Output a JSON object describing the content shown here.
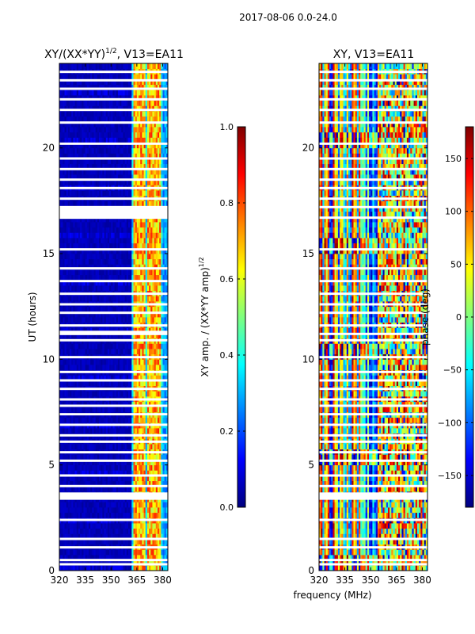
{
  "figure": {
    "suptitle": "2017-08-06 0.0-24.0",
    "shared_xlabel": "frequency (MHz)"
  },
  "chart_data": [
    {
      "type": "heatmap",
      "title_main": "XY/(XX*YY)",
      "title_exp": "1/2",
      "title_suffix": ", V13=EA11",
      "xlabel": "",
      "ylabel": "UT (hours)",
      "xlim": [
        320,
        383
      ],
      "ylim": [
        0,
        24
      ],
      "xticks": [
        320,
        335,
        350,
        365,
        380
      ],
      "yticks": [
        0,
        5,
        10,
        15,
        20
      ],
      "colorbar": {
        "label_main": "XY amp. / (XX*YY amp)",
        "label_exp": "1/2",
        "range": [
          0.0,
          1.0
        ],
        "ticks": [
          "0.0",
          "0.2",
          "0.4",
          "0.6",
          "0.8",
          "1.0"
        ],
        "tick_values": [
          0.0,
          0.2,
          0.4,
          0.6,
          0.8,
          1.0
        ]
      },
      "description_of_values": "Low (~0.05) for frequencies below 362 MHz; bright bands 0.3-0.8 between 362 and 378 MHz",
      "strong_columns_mhz": [
        363.5,
        366,
        368,
        372,
        375,
        377
      ],
      "gap_rows_hours": [
        0.3,
        0.5,
        1.1,
        1.5,
        2.4,
        3.6,
        4.0,
        4.5,
        5.2,
        5.6,
        6.1,
        6.4,
        6.9,
        7.4,
        7.8,
        8.1,
        8.6,
        9.0,
        9.4,
        10.1,
        10.9,
        11.2,
        11.6,
        12.2,
        12.6,
        13.1,
        13.7,
        14.3,
        15.2,
        16.7,
        17.2,
        17.6,
        18.1,
        18.5,
        19.0,
        19.5,
        20.2,
        21.2,
        21.8,
        22.3,
        22.8,
        23.2,
        23.6
      ],
      "gap_blocks_hours": [
        [
          3.35,
          3.7
        ],
        [
          16.7,
          17.25
        ],
        [
          11.2,
          11.35
        ]
      ]
    },
    {
      "type": "heatmap",
      "title": "XY, V13=EA11",
      "xlabel": "",
      "ylabel": "",
      "xlim": [
        320,
        383
      ],
      "ylim": [
        0,
        24
      ],
      "xticks": [
        320,
        335,
        350,
        365,
        380
      ],
      "yticks": [
        0,
        5,
        10,
        15,
        20
      ],
      "colorbar": {
        "label": "phase (deg)",
        "range": [
          -180,
          180
        ],
        "ticks": [
          "150",
          "100",
          "50",
          "0",
          "−50",
          "−100",
          "−150"
        ],
        "tick_values": [
          150,
          100,
          50,
          0,
          -50,
          -100,
          -150
        ]
      },
      "description_of_values": "Phase spans full -180 to 180 degrees; vertical striping across frequency, noisier structure above 355 MHz",
      "gap_rows_hours": [
        0.3,
        0.5,
        1.1,
        1.5,
        2.4,
        3.6,
        4.0,
        4.5,
        5.2,
        5.6,
        6.1,
        6.4,
        6.9,
        7.4,
        7.8,
        8.1,
        8.6,
        9.0,
        9.4,
        10.1,
        10.9,
        11.2,
        11.6,
        12.2,
        12.6,
        13.1,
        13.7,
        14.3,
        15.2,
        16.7,
        17.2,
        17.6,
        18.1,
        18.5,
        19.0,
        19.5,
        20.2,
        21.2,
        21.8,
        22.3,
        22.8,
        23.2,
        23.6
      ],
      "gap_blocks_hours": [
        [
          3.35,
          3.7
        ]
      ]
    }
  ]
}
